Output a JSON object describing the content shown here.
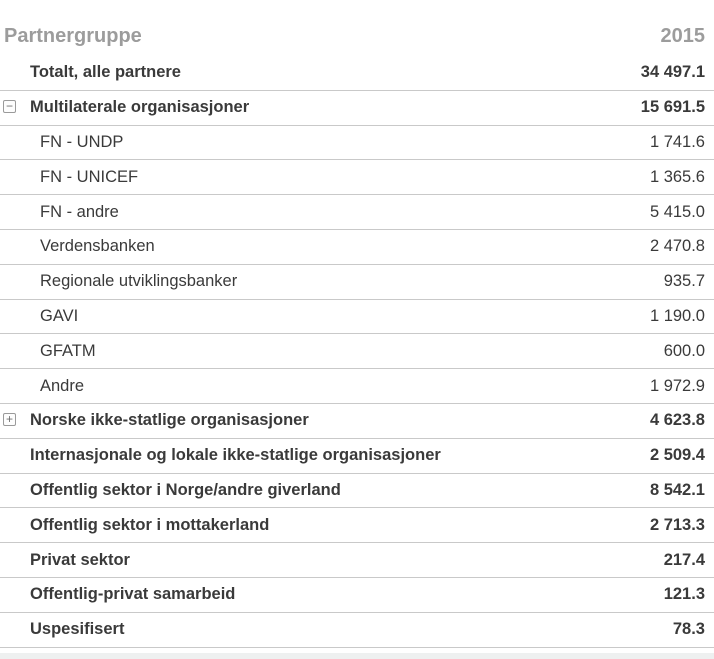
{
  "header": {
    "title": "Partnergruppe",
    "year": "2015"
  },
  "icons": {
    "collapse_glyph": "−",
    "expand_glyph": "+"
  },
  "table": {
    "rows": [
      {
        "label": "Totalt, alle partnere",
        "value": "34 497.1",
        "style": "group",
        "icon": "none"
      },
      {
        "label": "Multilaterale organisasjoner",
        "value": "15 691.5",
        "style": "group",
        "icon": "collapse"
      },
      {
        "label": "FN - UNDP",
        "value": "1 741.6",
        "style": "sub",
        "icon": "none"
      },
      {
        "label": "FN - UNICEF",
        "value": "1 365.6",
        "style": "sub",
        "icon": "none"
      },
      {
        "label": "FN - andre",
        "value": "5 415.0",
        "style": "sub",
        "icon": "none"
      },
      {
        "label": "Verdensbanken",
        "value": "2 470.8",
        "style": "sub",
        "icon": "none"
      },
      {
        "label": "Regionale utviklingsbanker",
        "value": "935.7",
        "style": "sub",
        "icon": "none"
      },
      {
        "label": "GAVI",
        "value": "1 190.0",
        "style": "sub",
        "icon": "none"
      },
      {
        "label": "GFATM",
        "value": "600.0",
        "style": "sub",
        "icon": "none"
      },
      {
        "label": "Andre",
        "value": "1 972.9",
        "style": "sub",
        "icon": "none"
      },
      {
        "label": "Norske ikke-statlige organisasjoner",
        "value": "4 623.8",
        "style": "group",
        "icon": "expand"
      },
      {
        "label": "Internasjonale og lokale ikke-statlige organisasjoner",
        "value": "2 509.4",
        "style": "group",
        "icon": "none"
      },
      {
        "label": "Offentlig sektor i Norge/andre giverland",
        "value": "8 542.1",
        "style": "group",
        "icon": "none"
      },
      {
        "label": "Offentlig sektor i mottakerland",
        "value": "2 713.3",
        "style": "group",
        "icon": "none"
      },
      {
        "label": "Privat sektor",
        "value": "217.4",
        "style": "group",
        "icon": "none"
      },
      {
        "label": "Offentlig-privat samarbeid",
        "value": "121.3",
        "style": "group",
        "icon": "none"
      },
      {
        "label": "Uspesifisert",
        "value": "78.3",
        "style": "group",
        "icon": "none"
      }
    ]
  }
}
